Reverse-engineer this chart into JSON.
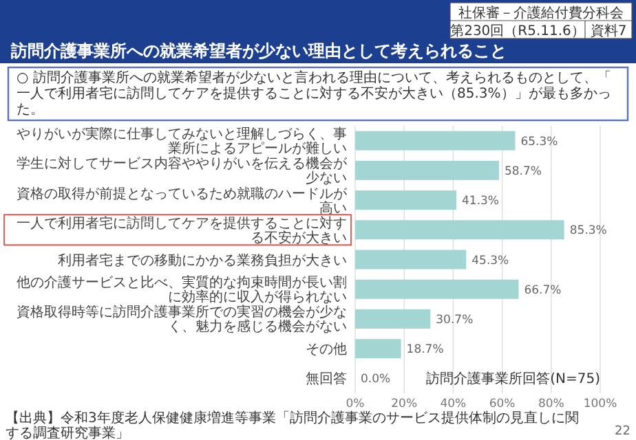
{
  "chart_data": {
    "type": "bar",
    "orientation": "horizontal",
    "title": "訪問介護事業所への就業希望者が少ない理由として考えられること",
    "subtitle": "○ 訪問介護事業所への就業希望者が少ないと言われる理由について、考えられるものとして、「一人で利用者宅に訪問してケアを提供することに対する不安が大きい（85.3%）」が最も多かった。",
    "categories": [
      "やりがいが実際に仕事してみないと理解しづらく、事業所によるアピールが難しい",
      "学生に対してサービス内容ややりがいを伝える機会が少ない",
      "資格の取得が前提となっているため就職のハードルが高い",
      "一人で利用者宅に訪問してケアを提供することに対する不安が大きい",
      "利用者宅までの移動にかかる業務負担が大きい",
      "他の介護サービスと比べ、実質的な拘束時間が長い割に効率的に収入が得られない",
      "資格取得時等に訪問介護事業所での実習の機会が少なく、魅力を感じる機会がない",
      "その他",
      "無回答"
    ],
    "values": [
      65.3,
      58.7,
      41.3,
      85.3,
      45.3,
      66.7,
      30.7,
      18.7,
      0.0
    ],
    "value_labels": [
      "65.3%",
      "58.7%",
      "41.3%",
      "85.3%",
      "45.3%",
      "66.7%",
      "30.7%",
      "18.7%",
      "0.0%"
    ],
    "color": "#a3d5d3",
    "xlim": [
      0,
      100
    ],
    "xticks": [
      {
        "value": 0,
        "label": "0%"
      },
      {
        "value": 20,
        "label": "20%"
      },
      {
        "value": 40,
        "label": "40%"
      },
      {
        "value": 60,
        "label": "60%"
      },
      {
        "value": 80,
        "label": "80%"
      },
      {
        "value": 100,
        "label": "100%"
      }
    ],
    "grid": "x",
    "annotations": [
      "訪問介護事業所回答(N=75)",
      "【出典】令和3年度老人保健健康増進等事業「訪問介護事業のサービス提供体制の見直しに関する調査研究事業」",
      "22",
      "社保審－介護給付費分科会",
      "第230回（R5.11.6）",
      "資料7"
    ]
  }
}
